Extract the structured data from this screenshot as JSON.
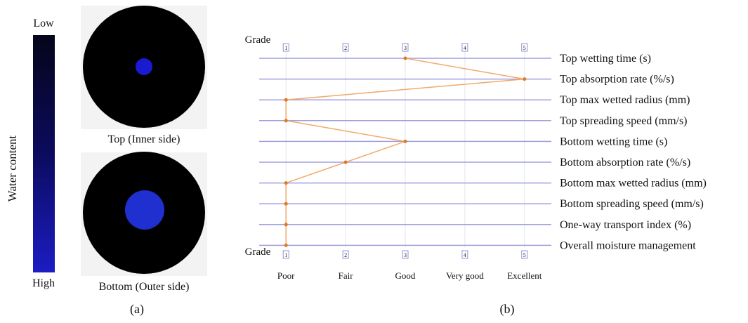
{
  "panel_a": {
    "colorbar_label": "Water content",
    "colorbar_low": "Low",
    "colorbar_high": "High",
    "top_caption": "Top (Inner side)",
    "bottom_caption": "Bottom (Outer side)",
    "panel_label": "(a)"
  },
  "chart_data": {
    "type": "line",
    "panel_label": "(b)",
    "axis_label": "Grade",
    "categories": [
      "Top wetting time (s)",
      "Top absorption rate (%/s)",
      "Top max wetted radius (mm)",
      "Top spreading speed (mm/s)",
      "Bottom wetting time (s)",
      "Bottom absorption rate (%/s)",
      "Bottom max wetted radius (mm)",
      "Bottom spreading speed (mm/s)",
      "One-way transport index (%)",
      "Overall moisture management"
    ],
    "values": [
      3,
      5,
      1,
      1,
      3,
      2,
      1,
      1,
      1,
      1
    ],
    "color": "#f2a96a",
    "marker_color": "#e0781e",
    "xlim": [
      0.55,
      5.45
    ],
    "xticks": [
      1,
      2,
      3,
      4,
      5
    ],
    "xtick_names": [
      "Poor",
      "Fair",
      "Good",
      "Very good",
      "Excellent"
    ],
    "grid": true
  }
}
